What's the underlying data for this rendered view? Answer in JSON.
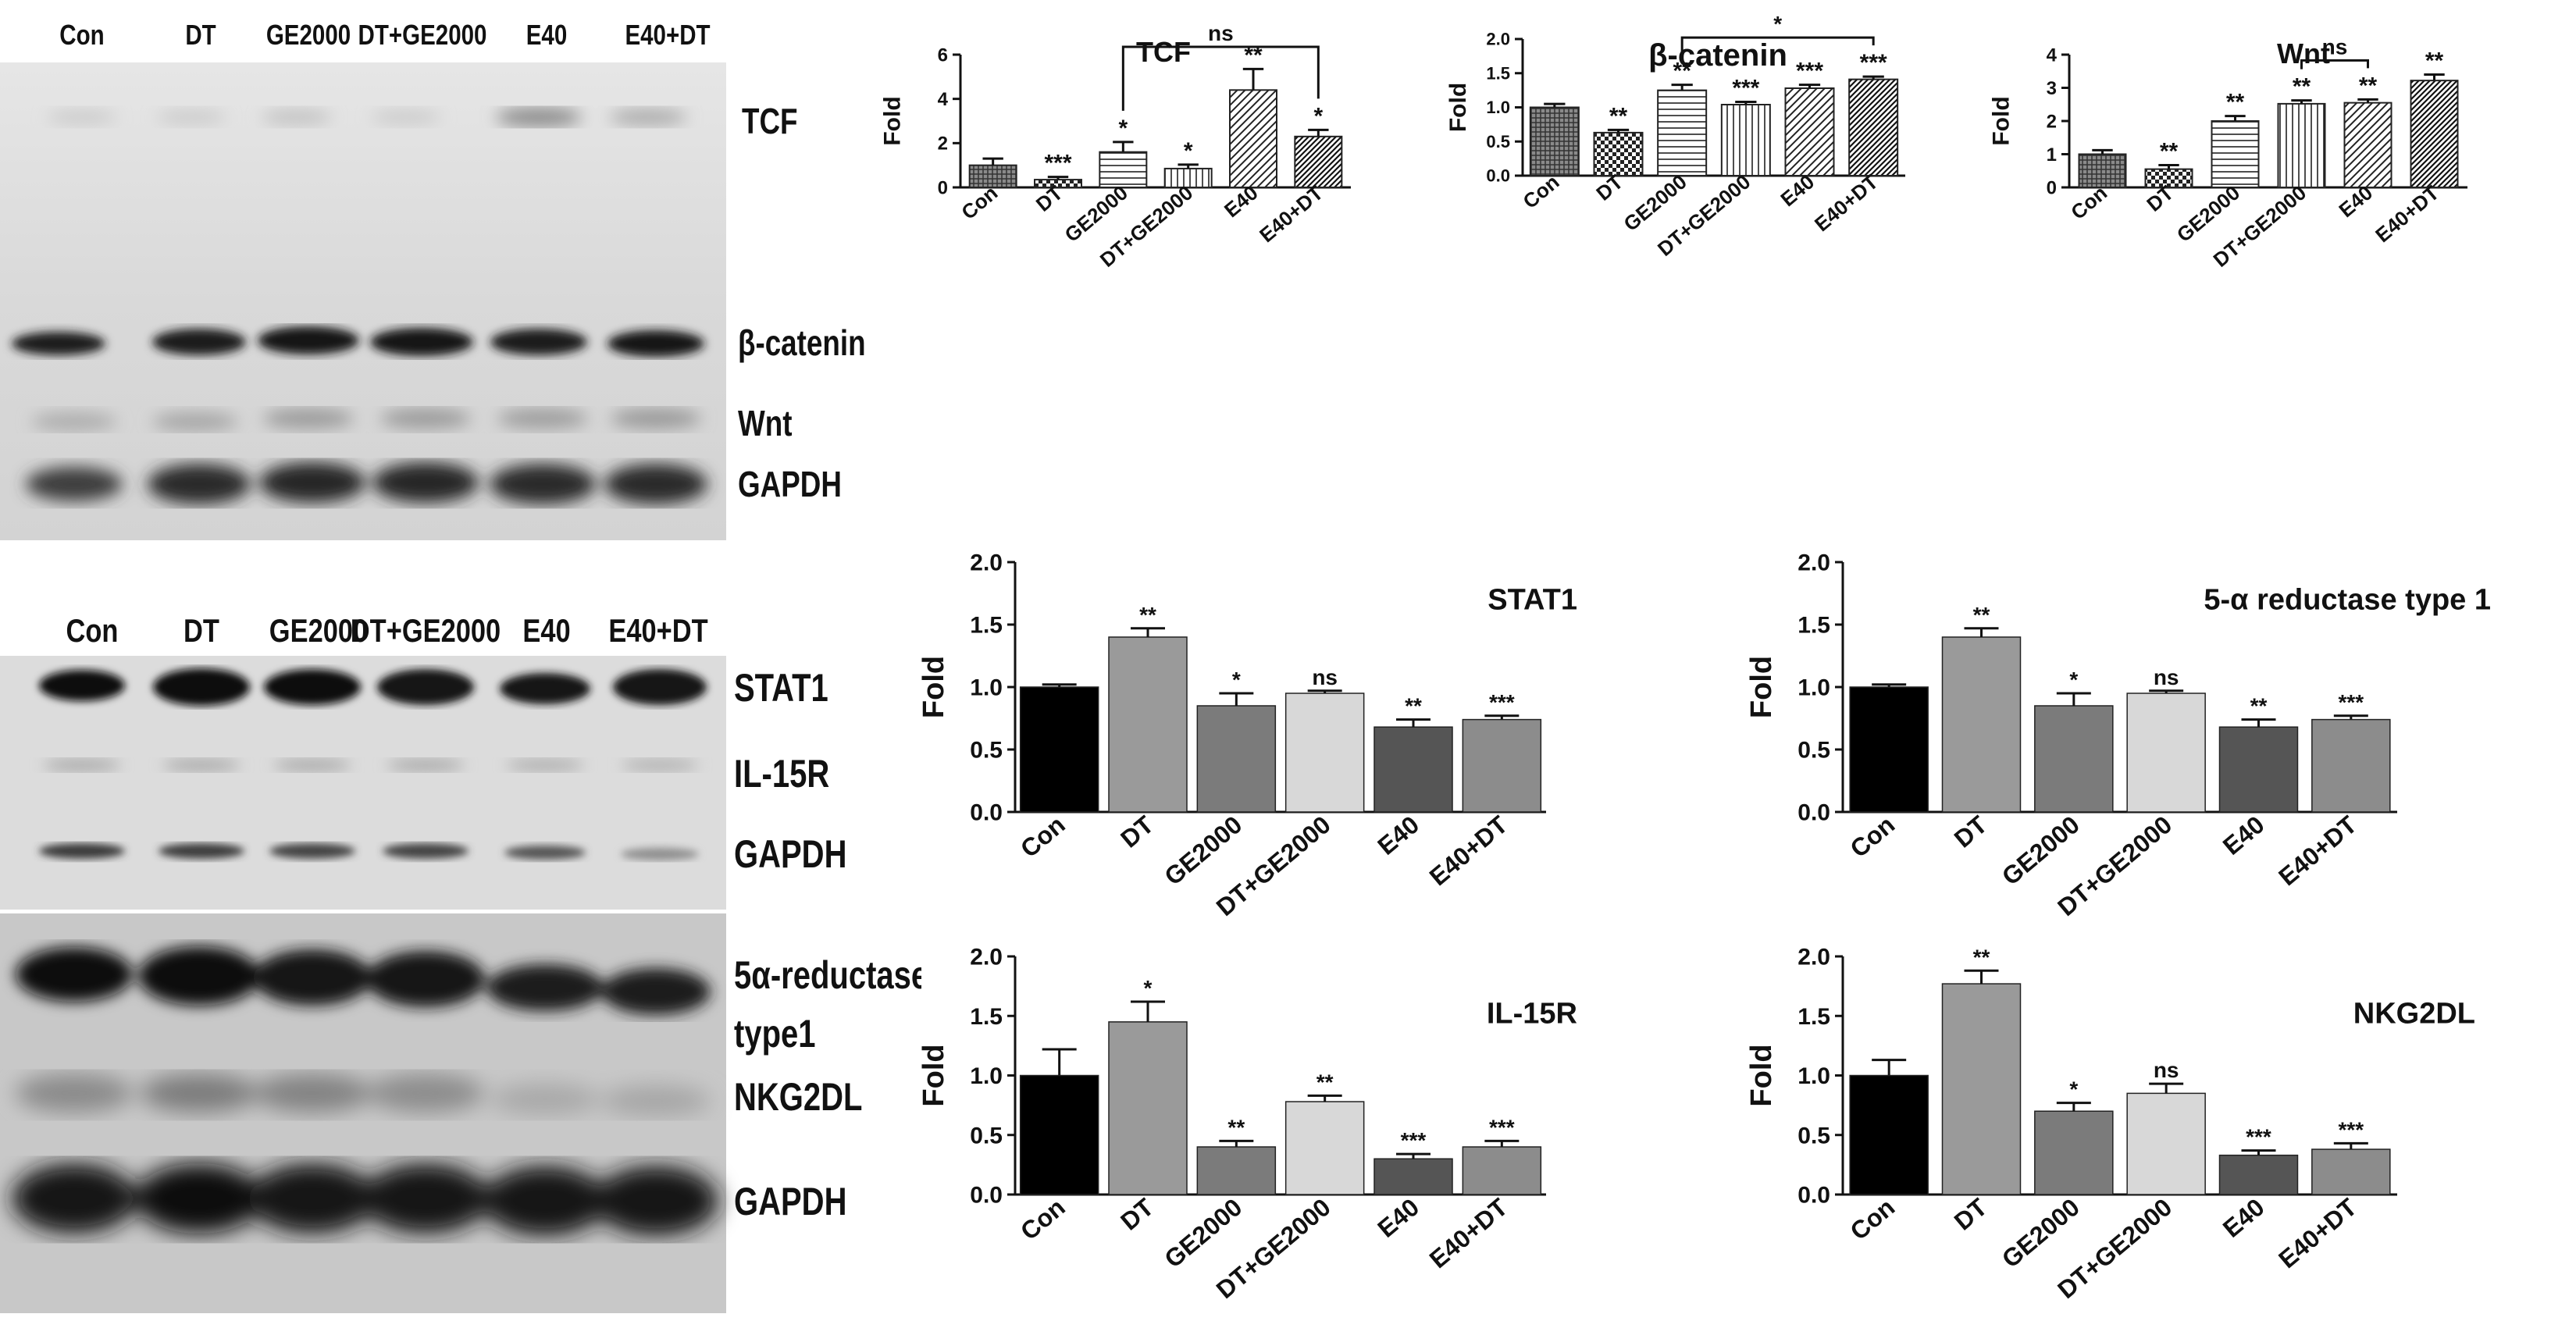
{
  "panel_top": {
    "lanes": [
      "Con",
      "DT",
      "GE2000",
      "DT+GE2000",
      "E40",
      "E40+DT"
    ],
    "bands": [
      "TCF",
      "β-catenin",
      "Wnt",
      "GAPDH"
    ]
  },
  "panel_bottom": {
    "lanes": [
      "Con",
      "DT",
      "GE2000",
      "DT+GE2000",
      "E40",
      "E40+DT"
    ],
    "bands": [
      "STAT1",
      "IL-15R",
      "GAPDH",
      "5α-reductase",
      "type1",
      "NKG2DL",
      "GAPDH"
    ]
  },
  "chart_data": [
    {
      "id": "tcf",
      "type": "bar",
      "title": "TCF",
      "ylabel": "Fold",
      "categories": [
        "Con",
        "DT",
        "GE2000",
        "DT+GE2000",
        "E40",
        "E40+DT"
      ],
      "values": [
        1.0,
        0.35,
        1.6,
        0.85,
        4.4,
        2.3
      ],
      "errors": [
        0.3,
        0.12,
        0.45,
        0.18,
        0.95,
        0.3
      ],
      "significance": [
        "",
        "***",
        "*",
        "*",
        "**",
        "*"
      ],
      "bracket": {
        "from": "GE2000",
        "to": "E40+DT",
        "label": "ns"
      },
      "ylim": [
        0,
        6
      ],
      "yticks": [
        0,
        2,
        4,
        6
      ],
      "patterns": [
        "crosshatch",
        "check",
        "horizontal",
        "vertical",
        "diagonal",
        "diagonal-dense"
      ],
      "grid": false
    },
    {
      "id": "bcatenin",
      "type": "bar",
      "title": "β-catenin",
      "ylabel": "Fold",
      "categories": [
        "Con",
        "DT",
        "GE2000",
        "DT+GE2000",
        "E40",
        "E40+DT"
      ],
      "values": [
        1.0,
        0.63,
        1.25,
        1.04,
        1.28,
        1.41
      ],
      "errors": [
        0.05,
        0.04,
        0.08,
        0.04,
        0.05,
        0.04
      ],
      "significance": [
        "",
        "**",
        "**",
        "***",
        "***",
        "***"
      ],
      "bracket": {
        "from": "GE2000",
        "to": "E40+DT",
        "label": "*"
      },
      "ylim": [
        0,
        2
      ],
      "yticks": [
        "0.0",
        "0.5",
        "1.0",
        "1.5",
        "2.0"
      ],
      "patterns": [
        "crosshatch",
        "check",
        "horizontal",
        "vertical",
        "diagonal",
        "diagonal-dense"
      ],
      "grid": false
    },
    {
      "id": "wnt",
      "type": "bar",
      "title": "Wnt",
      "ylabel": "Fold",
      "categories": [
        "Con",
        "DT",
        "GE2000",
        "DT+GE2000",
        "E40",
        "E40+DT"
      ],
      "values": [
        1.0,
        0.55,
        2.0,
        2.52,
        2.55,
        3.22
      ],
      "errors": [
        0.12,
        0.12,
        0.15,
        0.1,
        0.1,
        0.18
      ],
      "significance": [
        "",
        "**",
        "**",
        "**",
        "**",
        "**"
      ],
      "bracket": {
        "from": "DT+GE2000",
        "to": "E40",
        "label": "ns"
      },
      "ylim": [
        0,
        4
      ],
      "yticks": [
        0,
        1,
        2,
        3,
        4
      ],
      "patterns": [
        "crosshatch",
        "check",
        "horizontal",
        "vertical",
        "diagonal",
        "diagonal-dense"
      ],
      "grid": false
    },
    {
      "id": "stat1",
      "type": "bar",
      "title": "STAT1",
      "ylabel": "Fold",
      "categories": [
        "Con",
        "DT",
        "GE2000",
        "DT+GE2000",
        "E40",
        "E40+DT"
      ],
      "values": [
        1.0,
        1.4,
        0.85,
        0.95,
        0.68,
        0.74
      ],
      "errors": [
        0.02,
        0.07,
        0.1,
        0.02,
        0.06,
        0.03
      ],
      "significance": [
        "",
        "**",
        "*",
        "ns",
        "**",
        "***"
      ],
      "ylim": [
        0,
        2
      ],
      "yticks": [
        "0.0",
        "0.5",
        "1.0",
        "1.5",
        "2.0"
      ],
      "colors": [
        "#000000",
        "#9a9a9a",
        "#7b7b7b",
        "#d8d8d8",
        "#555555",
        "#8c8c8c"
      ],
      "grid": false
    },
    {
      "id": "reductase",
      "type": "bar",
      "title": "5-α reductase type 1",
      "ylabel": "Fold",
      "categories": [
        "Con",
        "DT",
        "GE2000",
        "DT+GE2000",
        "E40",
        "E40+DT"
      ],
      "values": [
        1.0,
        1.4,
        0.85,
        0.95,
        0.68,
        0.74
      ],
      "errors": [
        0.02,
        0.07,
        0.1,
        0.02,
        0.06,
        0.03
      ],
      "significance": [
        "",
        "**",
        "*",
        "ns",
        "**",
        "***"
      ],
      "ylim": [
        0,
        2
      ],
      "yticks": [
        "0.0",
        "0.5",
        "1.0",
        "1.5",
        "2.0"
      ],
      "colors": [
        "#000000",
        "#9a9a9a",
        "#7b7b7b",
        "#d8d8d8",
        "#555555",
        "#8c8c8c"
      ],
      "grid": false
    },
    {
      "id": "il15r",
      "type": "bar",
      "title": "IL-15R",
      "ylabel": "Fold",
      "categories": [
        "Con",
        "DT",
        "GE2000",
        "DT+GE2000",
        "E40",
        "E40+DT"
      ],
      "values": [
        1.0,
        1.45,
        0.4,
        0.78,
        0.3,
        0.4
      ],
      "errors": [
        0.22,
        0.17,
        0.05,
        0.05,
        0.04,
        0.05
      ],
      "significance": [
        "",
        "*",
        "**",
        "**",
        "***",
        "***"
      ],
      "ylim": [
        0,
        2
      ],
      "yticks": [
        "0.0",
        "0.5",
        "1.0",
        "1.5",
        "2.0"
      ],
      "colors": [
        "#000000",
        "#9a9a9a",
        "#7b7b7b",
        "#d8d8d8",
        "#555555",
        "#8c8c8c"
      ],
      "grid": false
    },
    {
      "id": "nkg2dl",
      "type": "bar",
      "title": "NKG2DL",
      "ylabel": "Fold",
      "categories": [
        "Con",
        "DT",
        "GE2000",
        "DT+GE2000",
        "E40",
        "E40+DT"
      ],
      "values": [
        1.0,
        1.77,
        0.7,
        0.85,
        0.33,
        0.38
      ],
      "errors": [
        0.13,
        0.11,
        0.07,
        0.08,
        0.04,
        0.05
      ],
      "significance": [
        "",
        "**",
        "*",
        "ns",
        "***",
        "***"
      ],
      "ylim": [
        0,
        2
      ],
      "yticks": [
        "0.0",
        "0.5",
        "1.0",
        "1.5",
        "2.0"
      ],
      "colors": [
        "#000000",
        "#9a9a9a",
        "#7b7b7b",
        "#d8d8d8",
        "#555555",
        "#8c8c8c"
      ],
      "grid": false
    }
  ]
}
